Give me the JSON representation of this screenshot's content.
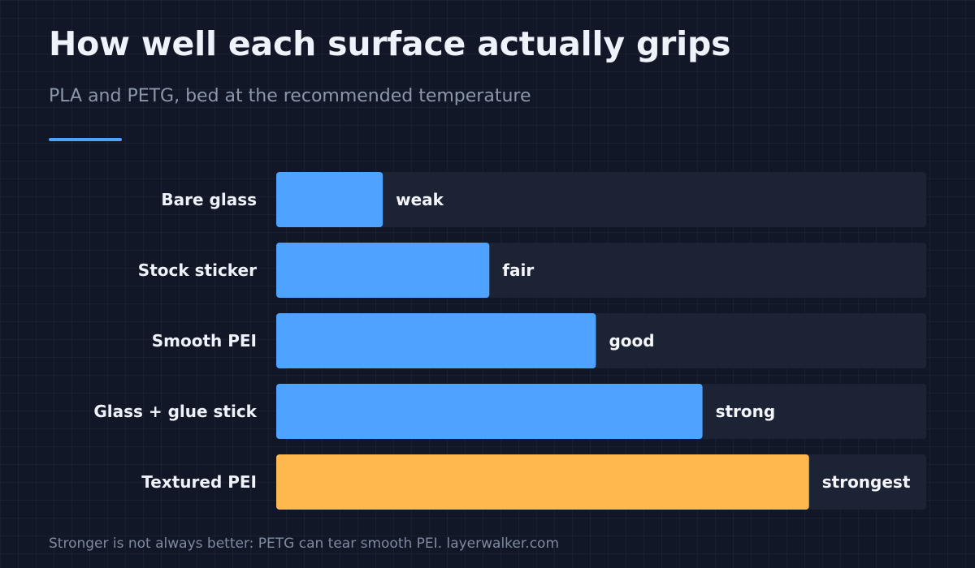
{
  "title": "How well each surface actually grips",
  "subtitle": "PLA and PETG, bed at the recommended temperature",
  "footnote": "Stronger is not always better: PETG can tear smooth PEI. layerwalker.com",
  "colors": {
    "bar": "#4da3ff",
    "highlight": "#ffb84d",
    "track": "#1b2335",
    "label": "#eef2fa",
    "value_label": "#f4f6fb"
  },
  "chart_data": {
    "type": "bar",
    "orientation": "horizontal",
    "categories": [
      "Bare glass",
      "Stock sticker",
      "Smooth PEI",
      "Glass + glue stick",
      "Textured PEI"
    ],
    "values": [
      1,
      2,
      3,
      4,
      5
    ],
    "value_labels": [
      "weak",
      "fair",
      "good",
      "strong",
      "strongest"
    ],
    "xlim": [
      0,
      6.1
    ],
    "highlight_index": 4,
    "xlabel": "",
    "ylabel": "",
    "grid": false
  }
}
